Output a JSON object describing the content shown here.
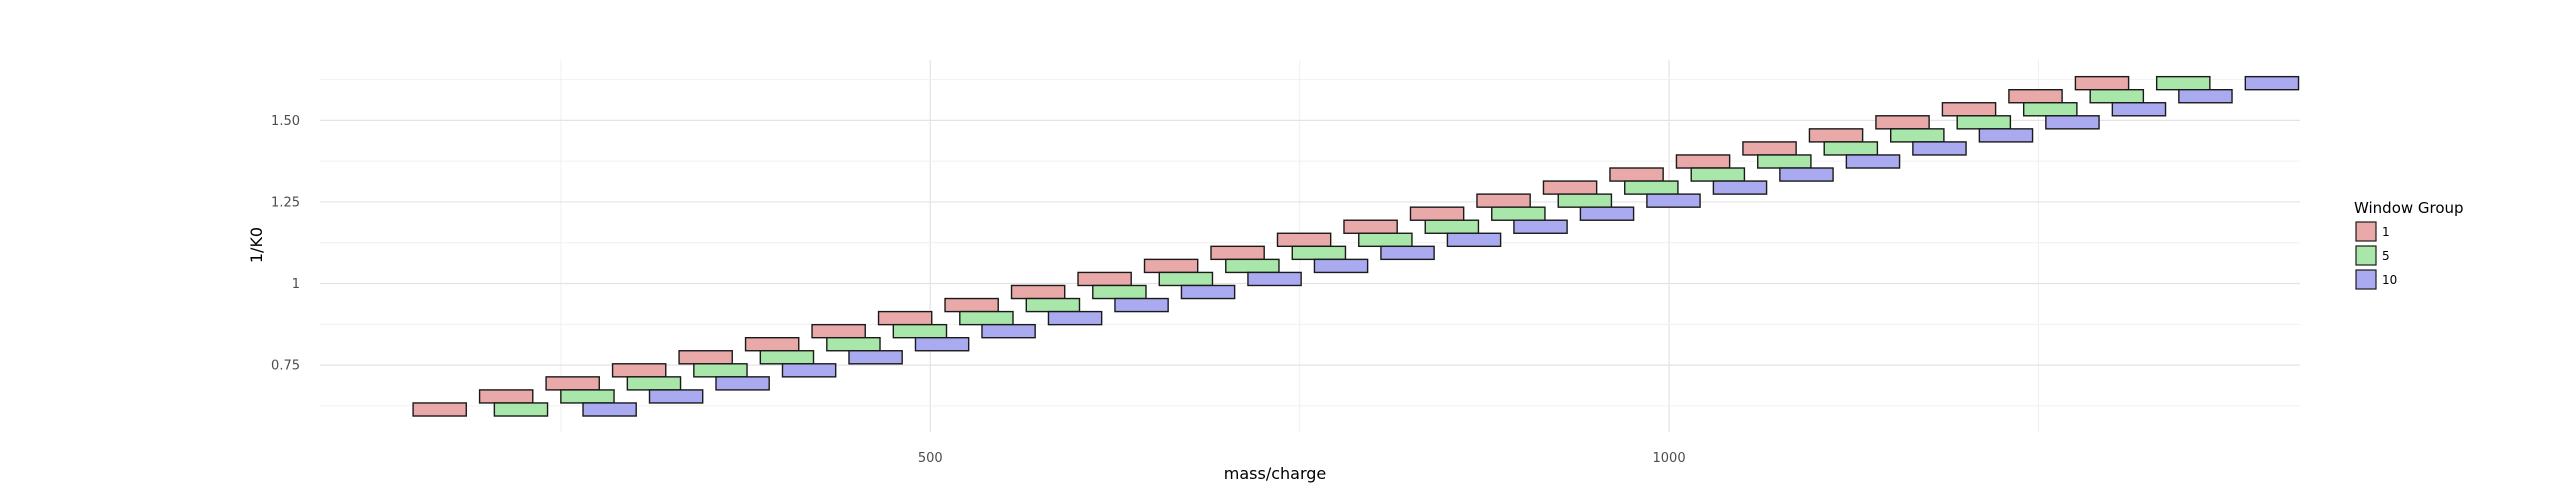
{
  "chart_data": {
    "type": "rect",
    "title": "",
    "xlabel": "mass/charge",
    "ylabel": "1/K0",
    "xlim": [
      87,
      1427
    ],
    "ylim": [
      0.545,
      1.685
    ],
    "x_ticks": [
      500,
      1000
    ],
    "x_tick_labels": [
      "500",
      "1000"
    ],
    "y_ticks": [
      0.75,
      1.0,
      1.25,
      1.5
    ],
    "y_tick_labels": [
      "0.75",
      "1",
      "1.25",
      "1.50"
    ],
    "grid": true,
    "legend_position": "right",
    "legend_title": "Window Group",
    "series": [
      {
        "name": "1",
        "color": "#e8a9a8",
        "windows": [
          {
            "mz": [
              150,
              186
            ],
            "k0": [
              0.594,
              0.634
            ]
          },
          {
            "mz": [
              195,
              231
            ],
            "k0": [
              0.634,
              0.674
            ]
          },
          {
            "mz": [
              240,
              276
            ],
            "k0": [
              0.674,
              0.714
            ]
          },
          {
            "mz": [
              285,
              321
            ],
            "k0": [
              0.714,
              0.754
            ]
          },
          {
            "mz": [
              330,
              366
            ],
            "k0": [
              0.754,
              0.794
            ]
          },
          {
            "mz": [
              375,
              411
            ],
            "k0": [
              0.794,
              0.834
            ]
          },
          {
            "mz": [
              420,
              456
            ],
            "k0": [
              0.834,
              0.874
            ]
          },
          {
            "mz": [
              465,
              501
            ],
            "k0": [
              0.874,
              0.914
            ]
          },
          {
            "mz": [
              510,
              546
            ],
            "k0": [
              0.914,
              0.954
            ]
          },
          {
            "mz": [
              555,
              591
            ],
            "k0": [
              0.954,
              0.994
            ]
          },
          {
            "mz": [
              600,
              636
            ],
            "k0": [
              0.994,
              1.034
            ]
          },
          {
            "mz": [
              645,
              681
            ],
            "k0": [
              1.034,
              1.074
            ]
          },
          {
            "mz": [
              690,
              726
            ],
            "k0": [
              1.074,
              1.114
            ]
          },
          {
            "mz": [
              735,
              771
            ],
            "k0": [
              1.114,
              1.154
            ]
          },
          {
            "mz": [
              780,
              816
            ],
            "k0": [
              1.154,
              1.194
            ]
          },
          {
            "mz": [
              825,
              861
            ],
            "k0": [
              1.194,
              1.234
            ]
          },
          {
            "mz": [
              870,
              906
            ],
            "k0": [
              1.234,
              1.274
            ]
          },
          {
            "mz": [
              915,
              951
            ],
            "k0": [
              1.274,
              1.314
            ]
          },
          {
            "mz": [
              960,
              996
            ],
            "k0": [
              1.314,
              1.354
            ]
          },
          {
            "mz": [
              1005,
              1041
            ],
            "k0": [
              1.354,
              1.394
            ]
          },
          {
            "mz": [
              1050,
              1086
            ],
            "k0": [
              1.394,
              1.434
            ]
          },
          {
            "mz": [
              1095,
              1131
            ],
            "k0": [
              1.434,
              1.474
            ]
          },
          {
            "mz": [
              1140,
              1176
            ],
            "k0": [
              1.474,
              1.514
            ]
          },
          {
            "mz": [
              1185,
              1221
            ],
            "k0": [
              1.514,
              1.554
            ]
          },
          {
            "mz": [
              1230,
              1266
            ],
            "k0": [
              1.554,
              1.594
            ]
          },
          {
            "mz": [
              1275,
              1311
            ],
            "k0": [
              1.594,
              1.634
            ]
          }
        ]
      },
      {
        "name": "5",
        "color": "#a9e6a9",
        "windows": [
          {
            "mz": [
              205,
              241
            ],
            "k0": [
              0.594,
              0.634
            ]
          },
          {
            "mz": [
              250,
              286
            ],
            "k0": [
              0.634,
              0.674
            ]
          },
          {
            "mz": [
              295,
              331
            ],
            "k0": [
              0.674,
              0.714
            ]
          },
          {
            "mz": [
              340,
              376
            ],
            "k0": [
              0.714,
              0.754
            ]
          },
          {
            "mz": [
              385,
              421
            ],
            "k0": [
              0.754,
              0.794
            ]
          },
          {
            "mz": [
              430,
              466
            ],
            "k0": [
              0.794,
              0.834
            ]
          },
          {
            "mz": [
              475,
              511
            ],
            "k0": [
              0.834,
              0.874
            ]
          },
          {
            "mz": [
              520,
              556
            ],
            "k0": [
              0.874,
              0.914
            ]
          },
          {
            "mz": [
              565,
              601
            ],
            "k0": [
              0.914,
              0.954
            ]
          },
          {
            "mz": [
              610,
              646
            ],
            "k0": [
              0.954,
              0.994
            ]
          },
          {
            "mz": [
              655,
              691
            ],
            "k0": [
              0.994,
              1.034
            ]
          },
          {
            "mz": [
              700,
              736
            ],
            "k0": [
              1.034,
              1.074
            ]
          },
          {
            "mz": [
              745,
              781
            ],
            "k0": [
              1.074,
              1.114
            ]
          },
          {
            "mz": [
              790,
              826
            ],
            "k0": [
              1.114,
              1.154
            ]
          },
          {
            "mz": [
              835,
              871
            ],
            "k0": [
              1.154,
              1.194
            ]
          },
          {
            "mz": [
              880,
              916
            ],
            "k0": [
              1.194,
              1.234
            ]
          },
          {
            "mz": [
              925,
              961
            ],
            "k0": [
              1.234,
              1.274
            ]
          },
          {
            "mz": [
              970,
              1006
            ],
            "k0": [
              1.274,
              1.314
            ]
          },
          {
            "mz": [
              1015,
              1051
            ],
            "k0": [
              1.314,
              1.354
            ]
          },
          {
            "mz": [
              1060,
              1096
            ],
            "k0": [
              1.354,
              1.394
            ]
          },
          {
            "mz": [
              1105,
              1141
            ],
            "k0": [
              1.394,
              1.434
            ]
          },
          {
            "mz": [
              1150,
              1186
            ],
            "k0": [
              1.434,
              1.474
            ]
          },
          {
            "mz": [
              1195,
              1231
            ],
            "k0": [
              1.474,
              1.514
            ]
          },
          {
            "mz": [
              1240,
              1276
            ],
            "k0": [
              1.514,
              1.554
            ]
          },
          {
            "mz": [
              1285,
              1321
            ],
            "k0": [
              1.554,
              1.594
            ]
          },
          {
            "mz": [
              1330,
              1366
            ],
            "k0": [
              1.594,
              1.634
            ]
          }
        ]
      },
      {
        "name": "10",
        "color": "#aaaaf0",
        "windows": [
          {
            "mz": [
              265,
              301
            ],
            "k0": [
              0.594,
              0.634
            ]
          },
          {
            "mz": [
              310,
              346
            ],
            "k0": [
              0.634,
              0.674
            ]
          },
          {
            "mz": [
              355,
              391
            ],
            "k0": [
              0.674,
              0.714
            ]
          },
          {
            "mz": [
              400,
              436
            ],
            "k0": [
              0.714,
              0.754
            ]
          },
          {
            "mz": [
              445,
              481
            ],
            "k0": [
              0.754,
              0.794
            ]
          },
          {
            "mz": [
              490,
              526
            ],
            "k0": [
              0.794,
              0.834
            ]
          },
          {
            "mz": [
              535,
              571
            ],
            "k0": [
              0.834,
              0.874
            ]
          },
          {
            "mz": [
              580,
              616
            ],
            "k0": [
              0.874,
              0.914
            ]
          },
          {
            "mz": [
              625,
              661
            ],
            "k0": [
              0.914,
              0.954
            ]
          },
          {
            "mz": [
              670,
              706
            ],
            "k0": [
              0.954,
              0.994
            ]
          },
          {
            "mz": [
              715,
              751
            ],
            "k0": [
              0.994,
              1.034
            ]
          },
          {
            "mz": [
              760,
              796
            ],
            "k0": [
              1.034,
              1.074
            ]
          },
          {
            "mz": [
              805,
              841
            ],
            "k0": [
              1.074,
              1.114
            ]
          },
          {
            "mz": [
              850,
              886
            ],
            "k0": [
              1.114,
              1.154
            ]
          },
          {
            "mz": [
              895,
              931
            ],
            "k0": [
              1.154,
              1.194
            ]
          },
          {
            "mz": [
              940,
              976
            ],
            "k0": [
              1.194,
              1.234
            ]
          },
          {
            "mz": [
              985,
              1021
            ],
            "k0": [
              1.234,
              1.274
            ]
          },
          {
            "mz": [
              1030,
              1066
            ],
            "k0": [
              1.274,
              1.314
            ]
          },
          {
            "mz": [
              1075,
              1111
            ],
            "k0": [
              1.314,
              1.354
            ]
          },
          {
            "mz": [
              1120,
              1156
            ],
            "k0": [
              1.354,
              1.394
            ]
          },
          {
            "mz": [
              1165,
              1201
            ],
            "k0": [
              1.394,
              1.434
            ]
          },
          {
            "mz": [
              1210,
              1246
            ],
            "k0": [
              1.434,
              1.474
            ]
          },
          {
            "mz": [
              1255,
              1291
            ],
            "k0": [
              1.474,
              1.514
            ]
          },
          {
            "mz": [
              1300,
              1336
            ],
            "k0": [
              1.514,
              1.554
            ]
          },
          {
            "mz": [
              1345,
              1381
            ],
            "k0": [
              1.554,
              1.594
            ]
          },
          {
            "mz": [
              1390,
              1426
            ],
            "k0": [
              1.594,
              1.634
            ]
          }
        ]
      }
    ]
  }
}
